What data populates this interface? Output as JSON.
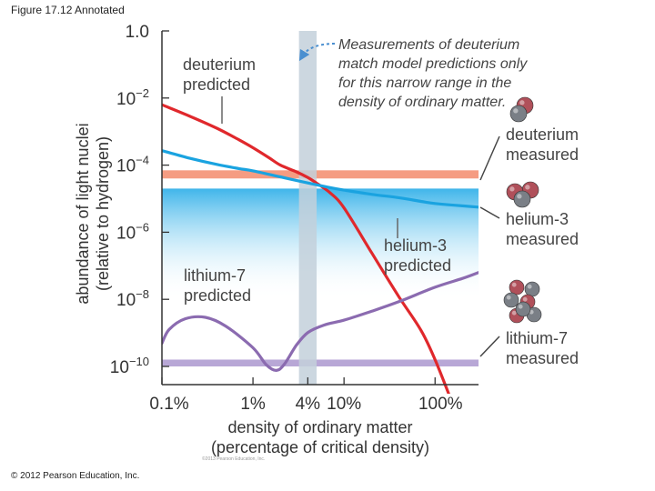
{
  "figure_label": "Figure 17.12 Annotated",
  "copyright": "© 2012 Pearson Education, Inc.",
  "fine_print": "©2013 Pearson Education, Inc.",
  "colors": {
    "deuterium": "#e0282c",
    "helium3": "#1aa3e0",
    "lithium7": "#8b6bb0",
    "deuterium_band": "#f59c82",
    "helium3_band": "#3fb5ea",
    "lithium7_band": "#b8a7d6",
    "highlight_band": "#c3d0da",
    "callout": "#4a8fd0"
  },
  "annotations": {
    "callout": [
      "Measurements of deuterium",
      "match model predictions only",
      "for this narrow range in the",
      "density of ordinary matter."
    ],
    "deuterium_predicted": [
      "deuterium",
      "predicted"
    ],
    "helium3_predicted": [
      "helium-3",
      "predicted"
    ],
    "lithium7_predicted": [
      "lithium-7",
      "predicted"
    ],
    "deuterium_measured": [
      "deuterium",
      "measured"
    ],
    "helium3_measured": [
      "helium-3",
      "measured"
    ],
    "lithium7_measured": [
      "lithium-7",
      "measured"
    ]
  },
  "chart_data": {
    "type": "line",
    "xlabel": [
      "density of ordinary matter",
      "(percentage of critical density)"
    ],
    "ylabel": [
      "abundance of light nuclei",
      "(relative to hydrogen)"
    ],
    "x_scale": "log",
    "y_scale": "log",
    "xlim": [
      0.1,
      300
    ],
    "ylim": [
      1e-10,
      1
    ],
    "x_ticks": [
      {
        "value": 0.1,
        "label": "0.1%"
      },
      {
        "value": 1,
        "label": "1%"
      },
      {
        "value": 4,
        "label": "4%"
      },
      {
        "value": 10,
        "label": "10%"
      },
      {
        "value": 100,
        "label": "100%"
      }
    ],
    "y_ticks": [
      {
        "value": 1,
        "base": "1.0",
        "exp": ""
      },
      {
        "value": 0.01,
        "base": "10",
        "exp": "−2"
      },
      {
        "value": 0.0001,
        "base": "10",
        "exp": "−4"
      },
      {
        "value": 1e-06,
        "base": "10",
        "exp": "−6"
      },
      {
        "value": 1e-08,
        "base": "10",
        "exp": "−8"
      },
      {
        "value": 1e-10,
        "base": "10",
        "exp": "−10"
      }
    ],
    "highlight_range": [
      3.2,
      5.0
    ],
    "measured_bands": [
      {
        "name": "deuterium measured",
        "range": [
          4e-05,
          7e-05
        ],
        "color_key": "deuterium_band"
      },
      {
        "name": "helium-3 measured",
        "range": [
          1e-08,
          2e-05
        ],
        "color_key": "helium3_band",
        "gradient": true
      },
      {
        "name": "lithium-7 measured",
        "range": [
          1e-10,
          1.6e-10
        ],
        "color_key": "lithium7_band"
      }
    ],
    "series": [
      {
        "name": "deuterium predicted",
        "color_key": "deuterium",
        "x": [
          0.1,
          0.2,
          0.4,
          0.7,
          1.0,
          1.5,
          2.0,
          3.0,
          4.0,
          5.0,
          7.0,
          10,
          20,
          40,
          70,
          100,
          150
        ],
        "y": [
          0.0063,
          0.0029,
          0.00126,
          0.00057,
          0.00033,
          0.000166,
          0.0001,
          6.3e-05,
          4.27e-05,
          2.9e-05,
          1.51e-05,
          5.3e-06,
          2.5e-07,
          1.2e-08,
          1.2e-09,
          1.6e-10,
          1e-11
        ]
      },
      {
        "name": "helium-3 predicted",
        "color_key": "helium3",
        "x": [
          0.1,
          0.2,
          0.4,
          0.7,
          1.0,
          2.0,
          4.0,
          7.0,
          10,
          20,
          40,
          70,
          100,
          200,
          300
        ],
        "y": [
          0.00027,
          0.000162,
          0.000105,
          7.9e-05,
          6.76e-05,
          4.46e-05,
          2.95e-05,
          2.14e-05,
          1.8e-05,
          1.35e-05,
          1.07e-05,
          8.3e-06,
          7.2e-06,
          6.1e-06,
          5.6e-06
        ]
      },
      {
        "name": "lithium-7 predicted",
        "color_key": "lithium7",
        "x": [
          0.1,
          0.12,
          0.18,
          0.3,
          0.5,
          1.0,
          1.4,
          1.8,
          2.2,
          3.0,
          4.0,
          6.0,
          10,
          20,
          40,
          100,
          200,
          300
        ],
        "y": [
          4.9e-10,
          1.26e-09,
          2.63e-09,
          2.9e-09,
          1.6e-09,
          3.6e-10,
          1.12e-10,
          7.6e-11,
          1.15e-10,
          4.3e-10,
          1.02e-09,
          1.7e-09,
          2.4e-09,
          4.4e-09,
          8.5e-09,
          2.3e-08,
          4.2e-08,
          6.3e-08
        ]
      }
    ]
  }
}
